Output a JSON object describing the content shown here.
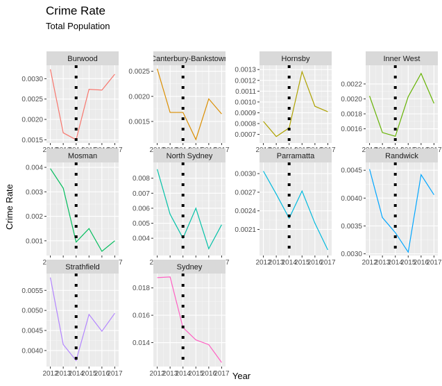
{
  "chart_data": {
    "type": "line",
    "title": "Crime Rate",
    "subtitle": "Total Population",
    "xlabel": "Year",
    "ylabel": "Crime Rate",
    "facet_layout": "4 columns, 3 rows, free y scales",
    "reference_line": {
      "x": 2014,
      "style": "dotted",
      "color": "#000000"
    },
    "grid": true,
    "legend": "none",
    "x": [
      2012,
      2013,
      2014,
      2015,
      2016,
      2017
    ],
    "x_tick_labels": [
      "2012",
      "2013",
      "2014",
      "2015",
      "2016",
      "2017"
    ],
    "panels": [
      {
        "name": "Burwood",
        "color": "#F8766D",
        "ylim": [
          0.00142,
          0.00333
        ],
        "yticks": [
          0.0015,
          0.002,
          0.0025,
          0.003
        ],
        "ytick_labels": [
          "0.0015",
          "0.0020",
          "0.0025",
          "0.0030"
        ],
        "values": [
          0.00323,
          0.00167,
          0.0015,
          0.00274,
          0.00272,
          0.00311
        ]
      },
      {
        "name": "Canterbury-Bankstown",
        "color": "#DB8E00",
        "ylim": [
          0.00107,
          0.00262
        ],
        "yticks": [
          0.0015,
          0.002,
          0.0025
        ],
        "ytick_labels": [
          "0.0015",
          "0.0020",
          "0.0025"
        ],
        "values": [
          0.00255,
          0.00168,
          0.00168,
          0.00114,
          0.00195,
          0.00165
        ]
      },
      {
        "name": "Hornsby",
        "color": "#AEA200",
        "ylim": [
          0.00062,
          0.00134
        ],
        "yticks": [
          0.0007,
          0.0008,
          0.0009,
          0.001,
          0.0011,
          0.0012,
          0.0013
        ],
        "ytick_labels": [
          "0.0007",
          "0.0008",
          "0.0009",
          "0.0010",
          "0.0011",
          "0.0012",
          "0.0013"
        ],
        "values": [
          0.00082,
          0.00068,
          0.00076,
          0.00128,
          0.00096,
          0.00091
        ]
      },
      {
        "name": "Inner West",
        "color": "#64B200",
        "ylim": [
          0.00141,
          0.00245
        ],
        "yticks": [
          0.0016,
          0.0018,
          0.002,
          0.0022
        ],
        "ytick_labels": [
          "0.0016",
          "0.0018",
          "0.0020",
          "0.0022"
        ],
        "values": [
          0.00204,
          0.00155,
          0.0015,
          0.00203,
          0.00234,
          0.00194
        ]
      },
      {
        "name": "Mosman",
        "color": "#00BD5C",
        "ylim": [
          0.0004,
          0.0042
        ],
        "yticks": [
          0.001,
          0.002,
          0.003,
          0.004
        ],
        "ytick_labels": [
          "0.001",
          "0.002",
          "0.003",
          "0.004"
        ],
        "values": [
          0.00395,
          0.00315,
          0.00095,
          0.0015,
          0.00057,
          0.001
        ]
      },
      {
        "name": "North Sydney",
        "color": "#00C1A7",
        "ylim": [
          0.00285,
          0.00905
        ],
        "yticks": [
          0.004,
          0.005,
          0.006,
          0.007,
          0.008
        ],
        "ytick_labels": [
          "0.004",
          "0.005",
          "0.006",
          "0.007",
          "0.008"
        ],
        "values": [
          0.0086,
          0.0056,
          0.004,
          0.006,
          0.0033,
          0.0049
        ]
      },
      {
        "name": "Parramatta",
        "color": "#00BADE",
        "ylim": [
          0.00168,
          0.00318
        ],
        "yticks": [
          0.0021,
          0.0024,
          0.0027,
          0.003
        ],
        "ytick_labels": [
          "0.0021",
          "0.0024",
          "0.0027",
          "0.0030"
        ],
        "values": [
          0.00304,
          0.00267,
          0.00228,
          0.00272,
          0.0022,
          0.00177
        ]
      },
      {
        "name": "Randwick",
        "color": "#00A6FF",
        "ylim": [
          0.00297,
          0.00464
        ],
        "yticks": [
          0.003,
          0.0035,
          0.004,
          0.0045
        ],
        "ytick_labels": [
          "0.0030",
          "0.0035",
          "0.0040",
          "0.0045"
        ],
        "values": [
          0.00452,
          0.00365,
          0.00338,
          0.00303,
          0.00442,
          0.00406
        ]
      },
      {
        "name": "Strathfield",
        "color": "#B385FF",
        "ylim": [
          0.0036,
          0.00592
        ],
        "yticks": [
          0.004,
          0.0045,
          0.005,
          0.0055
        ],
        "ytick_labels": [
          "0.0040",
          "0.0045",
          "0.0050",
          "0.0055"
        ],
        "values": [
          0.00582,
          0.00415,
          0.00375,
          0.0049,
          0.00448,
          0.00493
        ]
      },
      {
        "name": "Sydney",
        "color": "#FF61C3",
        "ylim": [
          0.01225,
          0.01905
        ],
        "yticks": [
          0.014,
          0.016,
          0.018
        ],
        "ytick_labels": [
          "0.014",
          "0.016",
          "0.018"
        ],
        "values": [
          0.01875,
          0.0188,
          0.0151,
          0.0142,
          0.01385,
          0.01255
        ]
      }
    ]
  }
}
